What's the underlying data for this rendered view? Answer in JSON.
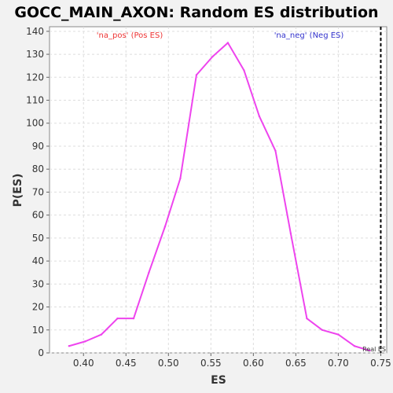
{
  "chart_data": {
    "type": "line",
    "title": "GOCC_MAIN_AXON: Random ES distribution",
    "xlabel": "ES",
    "ylabel": "P(ES)",
    "xlim": [
      0.36,
      0.757
    ],
    "ylim": [
      0,
      142
    ],
    "xticks": [
      0.4,
      0.45,
      0.5,
      0.55,
      0.6,
      0.65,
      0.7,
      0.75
    ],
    "xtick_labels": [
      "0.40",
      "0.45",
      "0.50",
      "0.55",
      "0.60",
      "0.65",
      "0.70",
      "0.75"
    ],
    "yticks": [
      0,
      10,
      20,
      30,
      40,
      50,
      60,
      70,
      80,
      90,
      100,
      110,
      120,
      130,
      140
    ],
    "ytick_labels": [
      "0",
      "10",
      "20",
      "30",
      "40",
      "50",
      "60",
      "70",
      "80",
      "90",
      "100",
      "110",
      "120",
      "130",
      "140"
    ],
    "grid": true,
    "series": [
      {
        "color": "#ee44ee",
        "x": [
          0.383,
          0.402,
          0.421,
          0.44,
          0.459,
          0.477,
          0.496,
          0.514,
          0.533,
          0.552,
          0.57,
          0.589,
          0.607,
          0.626,
          0.644,
          0.663,
          0.681,
          0.7,
          0.719,
          0.737
        ],
        "y": [
          3,
          5,
          8,
          15,
          15,
          35,
          55,
          76,
          121,
          129,
          135,
          123,
          103,
          88,
          52,
          15,
          10,
          8,
          3,
          1
        ]
      }
    ],
    "annotations": [
      {
        "text": "'na_pos' (Pos ES)",
        "color": "#ee3333",
        "position": "top-left"
      },
      {
        "text": "'na_neg' (Neg ES)",
        "color": "#3333cc",
        "position": "top-right"
      }
    ],
    "real_es": {
      "x": 0.75,
      "label": "Real ES",
      "color": "#000000"
    }
  }
}
